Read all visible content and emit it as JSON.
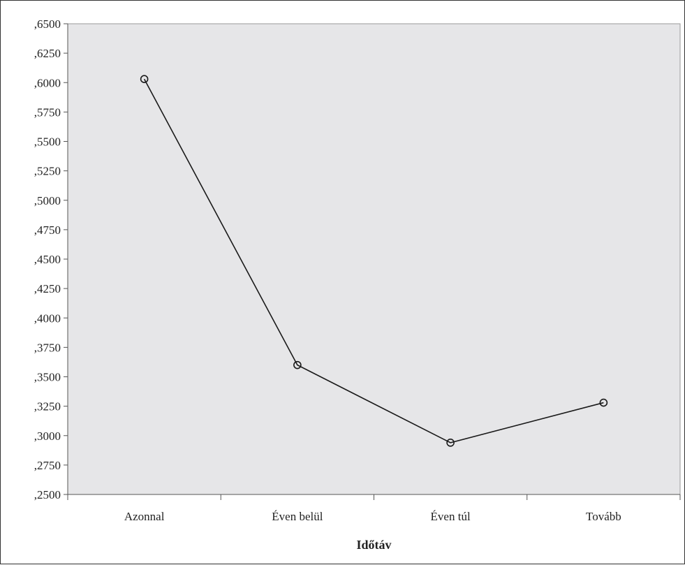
{
  "chart_data": {
    "type": "line",
    "title": "",
    "xlabel": "Időtáv",
    "ylabel": "",
    "categories": [
      "Azonnal",
      "Éven belül",
      "Éven túl",
      "Tovább"
    ],
    "series": [
      {
        "values": [
          0.603,
          0.36,
          0.294,
          0.328
        ]
      }
    ],
    "ylim": [
      0.25,
      0.65
    ],
    "yticks": [
      ",2500",
      ",2750",
      ",3000",
      ",3250",
      ",3500",
      ",3750",
      ",4000",
      ",4250",
      ",4500",
      ",4750",
      ",5000",
      ",5250",
      ",5500",
      ",5750",
      ",6000",
      ",6250",
      ",6500"
    ],
    "grid": false,
    "legend": "none",
    "marker": "open-circle",
    "colors": {
      "plot_background": "#e6e6e8",
      "line": "#1a1a1a",
      "axis": "#555555"
    }
  }
}
